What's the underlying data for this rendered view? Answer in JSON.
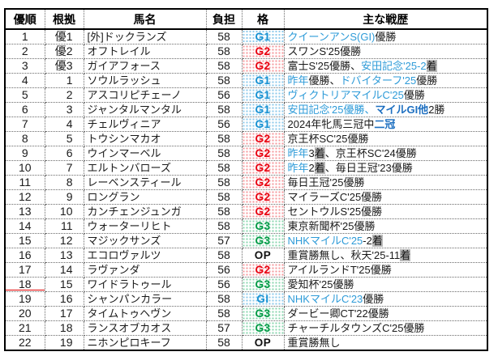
{
  "colors": {
    "g1": "#1791d2",
    "g2": "#e8000f",
    "g3": "#009a44",
    "link": "#2e9bd8",
    "em": "#1d6fc0",
    "mark_bg": "#b9b9b9",
    "underline_red": "#e00000"
  },
  "table": {
    "columns": [
      "優順",
      "根拠",
      "馬名",
      "負担",
      "格",
      "主な戦歴"
    ],
    "rows": [
      {
        "rank": "1",
        "basis": "優1",
        "name": "[外]ドックランズ",
        "weight": "58",
        "grade": {
          "label": "G1",
          "type": "g1"
        },
        "marked": false,
        "history": [
          {
            "t": "クイーンアンS(GI)",
            "s": "blue"
          },
          {
            "t": "優勝",
            "s": "plain"
          }
        ]
      },
      {
        "rank": "2",
        "basis": "優2",
        "name": "オフトレイル",
        "weight": "58",
        "grade": {
          "label": "G2",
          "type": "g2"
        },
        "marked": false,
        "history": [
          {
            "t": "スワンS'25優勝",
            "s": "plain"
          }
        ]
      },
      {
        "rank": "3",
        "basis": "優3",
        "name": "ガイアフォース",
        "weight": "58",
        "grade": {
          "label": "G2",
          "type": "g2"
        },
        "marked": false,
        "history": [
          {
            "t": "富士S'25優勝、",
            "s": "plain"
          },
          {
            "t": "安田記念'25-2",
            "s": "blue"
          },
          {
            "t": "着",
            "s": "mark"
          }
        ]
      },
      {
        "rank": "4",
        "basis": "1",
        "name": "ソウルラッシュ",
        "weight": "58",
        "grade": {
          "label": "G1",
          "type": "g1"
        },
        "marked": false,
        "history": [
          {
            "t": "昨年",
            "s": "blue"
          },
          {
            "t": "優勝、",
            "s": "plain"
          },
          {
            "t": "ドバイターフ'25",
            "s": "blue"
          },
          {
            "t": "優勝",
            "s": "plain"
          }
        ]
      },
      {
        "rank": "5",
        "basis": "2",
        "name": "アスコリピチェーノ",
        "weight": "56",
        "grade": {
          "label": "G1",
          "type": "g1"
        },
        "marked": false,
        "history": [
          {
            "t": "ヴィクトリアマイルC'25",
            "s": "blue"
          },
          {
            "t": "優勝",
            "s": "plain"
          }
        ]
      },
      {
        "rank": "6",
        "basis": "3",
        "name": "ジャンタルマンタル",
        "weight": "58",
        "grade": {
          "label": "G1",
          "type": "g1"
        },
        "marked": false,
        "history": [
          {
            "t": "安田記念'25優勝、",
            "s": "blue"
          },
          {
            "t": "マイルGI他",
            "s": "em"
          },
          {
            "t": "2勝",
            "s": "plain"
          }
        ]
      },
      {
        "rank": "7",
        "basis": "4",
        "name": "チェルヴィニア",
        "weight": "56",
        "grade": {
          "label": "G1",
          "type": "g1"
        },
        "marked": false,
        "history": [
          {
            "t": "2024年牝馬三冠中",
            "s": "plain"
          },
          {
            "t": "二冠",
            "s": "em"
          }
        ]
      },
      {
        "rank": "8",
        "basis": "5",
        "name": "トウシンマカオ",
        "weight": "58",
        "grade": {
          "label": "G2",
          "type": "g2"
        },
        "marked": false,
        "history": [
          {
            "t": "京王杯SC'25優勝",
            "s": "plain"
          }
        ]
      },
      {
        "rank": "9",
        "basis": "6",
        "name": "ウインマーベル",
        "weight": "58",
        "grade": {
          "label": "G2",
          "type": "g2"
        },
        "marked": false,
        "history": [
          {
            "t": "昨年",
            "s": "blue"
          },
          {
            "t": "3",
            "s": "plain"
          },
          {
            "t": "着",
            "s": "mark"
          },
          {
            "t": "、京王杯SC'24優勝",
            "s": "plain"
          }
        ]
      },
      {
        "rank": "10",
        "basis": "7",
        "name": "エルトンバローズ",
        "weight": "58",
        "grade": {
          "label": "G2",
          "type": "g2"
        },
        "marked": false,
        "history": [
          {
            "t": "昨年",
            "s": "blue"
          },
          {
            "t": "2",
            "s": "plain"
          },
          {
            "t": "着",
            "s": "mark"
          },
          {
            "t": "、毎日王冠'23優勝",
            "s": "plain"
          }
        ]
      },
      {
        "rank": "11",
        "basis": "8",
        "name": "レーベンスティール",
        "weight": "58",
        "grade": {
          "label": "G2",
          "type": "g2"
        },
        "marked": false,
        "history": [
          {
            "t": "毎日王冠'25優勝",
            "s": "plain"
          }
        ]
      },
      {
        "rank": "12",
        "basis": "9",
        "name": "ロングラン",
        "weight": "58",
        "grade": {
          "label": "G2",
          "type": "g2"
        },
        "marked": false,
        "history": [
          {
            "t": "マイラーズC'25優勝",
            "s": "plain"
          }
        ]
      },
      {
        "rank": "13",
        "basis": "10",
        "name": "カンチェンジュンガ",
        "weight": "58",
        "grade": {
          "label": "G2",
          "type": "g2"
        },
        "marked": false,
        "history": [
          {
            "t": "セントウルS'25優勝",
            "s": "plain"
          }
        ]
      },
      {
        "rank": "14",
        "basis": "11",
        "name": "ウォーターリヒト",
        "weight": "58",
        "grade": {
          "label": "G3",
          "type": "g3"
        },
        "marked": false,
        "history": [
          {
            "t": "東京新聞杯'25優勝",
            "s": "plain"
          }
        ]
      },
      {
        "rank": "15",
        "basis": "12",
        "name": "マジックサンズ",
        "weight": "57",
        "grade": {
          "label": "G3",
          "type": "g3"
        },
        "marked": false,
        "history": [
          {
            "t": "NHKマイルC'25",
            "s": "blue"
          },
          {
            "t": "-2",
            "s": "plain"
          },
          {
            "t": "着",
            "s": "mark"
          }
        ]
      },
      {
        "rank": "16",
        "basis": "13",
        "name": "エコロヴァルツ",
        "weight": "58",
        "grade": {
          "label": "OP",
          "type": "op"
        },
        "marked": false,
        "history": [
          {
            "t": "重賞勝無し、秋天'25-11",
            "s": "plain"
          },
          {
            "t": "着",
            "s": "mark"
          }
        ]
      },
      {
        "rank": "17",
        "basis": "14",
        "name": "ラヴァンダ",
        "weight": "56",
        "grade": {
          "label": "G2",
          "type": "g2"
        },
        "marked": false,
        "history": [
          {
            "t": "アイルランドT'25優勝",
            "s": "plain"
          }
        ]
      },
      {
        "rank": "18",
        "basis": "15",
        "name": "ワイドラトゥール",
        "weight": "56",
        "grade": {
          "label": "G3",
          "type": "g3"
        },
        "marked": true,
        "history": [
          {
            "t": "愛知杯'25優勝",
            "s": "plain"
          }
        ]
      },
      {
        "rank": "19",
        "basis": "16",
        "name": "シャンパンカラー",
        "weight": "58",
        "grade": {
          "label": "GI",
          "type": "g1"
        },
        "marked": false,
        "history": [
          {
            "t": "NHKマイルC'23",
            "s": "blue"
          },
          {
            "t": "優勝",
            "s": "plain"
          }
        ]
      },
      {
        "rank": "20",
        "basis": "17",
        "name": "タイムトゥヘヴン",
        "weight": "58",
        "grade": {
          "label": "G3",
          "type": "g3"
        },
        "marked": false,
        "history": [
          {
            "t": "ダービー卿CT'22優勝",
            "s": "plain"
          }
        ]
      },
      {
        "rank": "21",
        "basis": "18",
        "name": "ランスオブカオス",
        "weight": "57",
        "grade": {
          "label": "G3",
          "type": "g3"
        },
        "marked": false,
        "history": [
          {
            "t": "チャーチルタウンズC'25優勝",
            "s": "plain"
          }
        ]
      },
      {
        "rank": "22",
        "basis": "19",
        "name": "ニホンピロキーフ",
        "weight": "58",
        "grade": {
          "label": "OP",
          "type": "op"
        },
        "marked": false,
        "history": [
          {
            "t": "重賞勝無し",
            "s": "plain"
          }
        ]
      }
    ]
  }
}
